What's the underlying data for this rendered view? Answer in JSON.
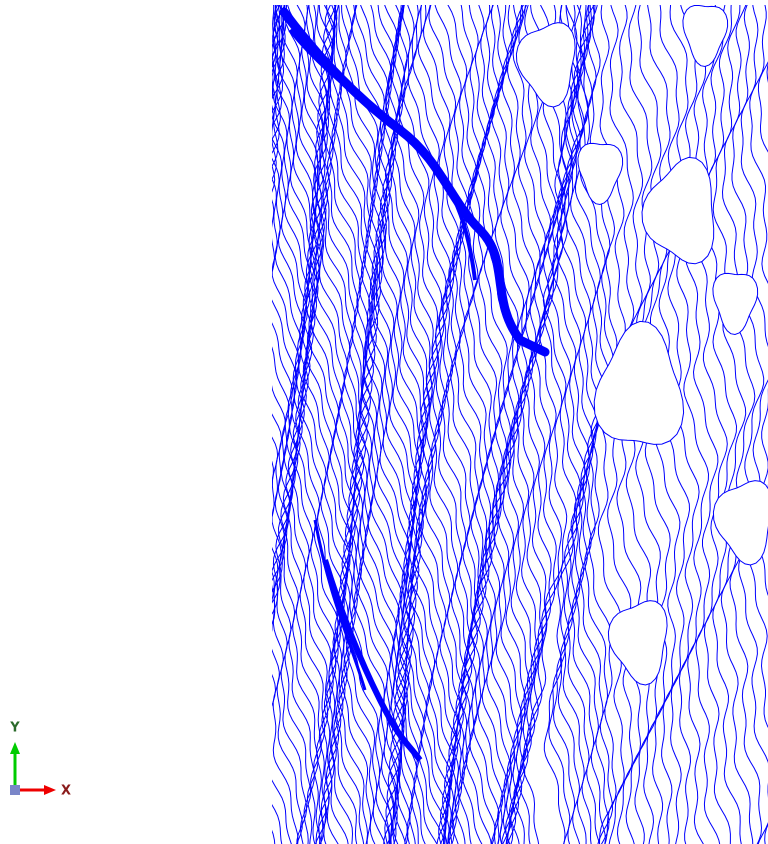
{
  "axis_triad": {
    "y_label": "Y",
    "x_label": "X"
  }
}
